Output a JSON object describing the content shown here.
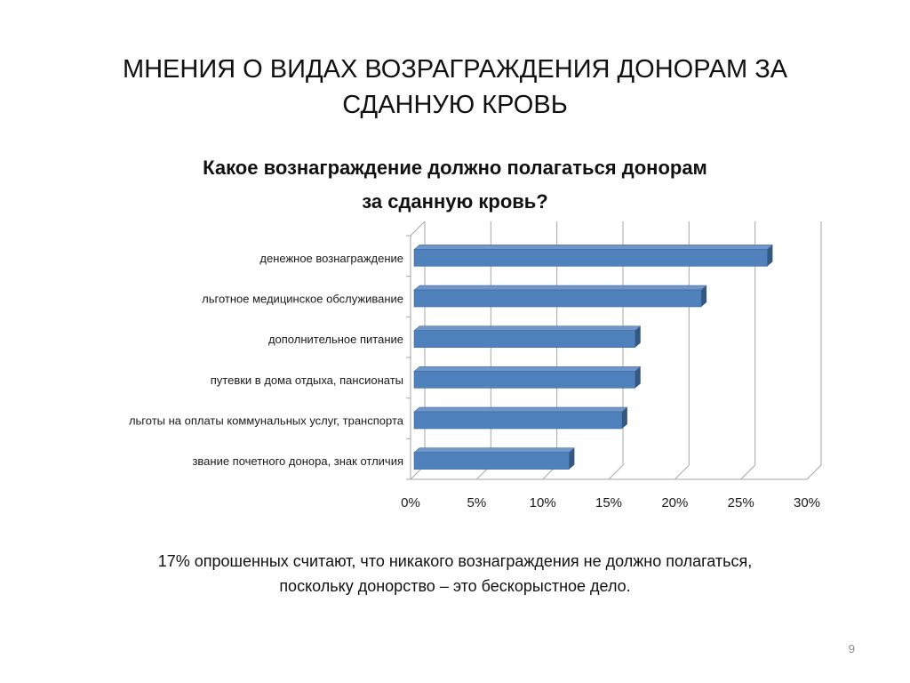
{
  "slide": {
    "title": "МНЕНИЯ О ВИДАХ ВОЗРАГРАЖДЕНИЯ ДОНОРАМ ЗА\nСДАННУЮ КРОВЬ",
    "footnote": "17% опрошенных считают, что никакого вознаграждения не должно полагаться,\nпоскольку донорство – это бескорыстное дело.",
    "page_number": "9"
  },
  "chart_data": {
    "type": "bar",
    "orientation": "horizontal",
    "style": "3d",
    "title": "Какое вознаграждение должно полагаться донорам\nза сданную кровь?",
    "categories": [
      "денежное вознаграждение",
      "льготное медицинское обслуживание",
      "дополнительное питание",
      "путевки в дома отдыха, пансионаты",
      "льготы на оплаты коммунальных услуг, транспорта",
      "звание почетного донора, знак отличия"
    ],
    "values": [
      27,
      22,
      17,
      17,
      16,
      12
    ],
    "x_ticks": [
      "0%",
      "5%",
      "10%",
      "15%",
      "20%",
      "25%",
      "30%"
    ],
    "xlim": [
      0,
      30
    ],
    "grid": true,
    "legend": "none",
    "colors": {
      "bar_front": "#4f81bd",
      "bar_top": "#6f97cc",
      "bar_side": "#34587f",
      "grid": "#a6a6a6"
    }
  }
}
